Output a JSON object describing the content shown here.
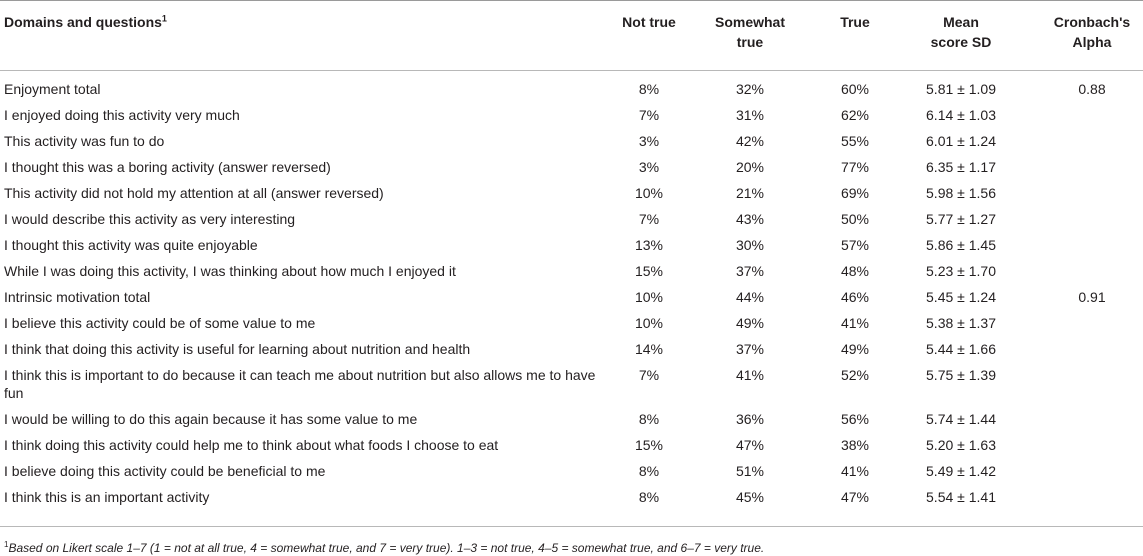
{
  "headers": {
    "question": "Domains and questions",
    "question_sup": "1",
    "not_true": "Not true",
    "somewhat_true_1": "Somewhat",
    "somewhat_true_2": "true",
    "true": "True",
    "mean_1": "Mean",
    "mean_2": "score SD",
    "alpha_1": "Cronbach's",
    "alpha_2": "Alpha"
  },
  "rows": [
    {
      "q": "Enjoyment total",
      "nt": "8%",
      "st": "32%",
      "t": "60%",
      "m": "5.81 ± 1.09",
      "a": "0.88"
    },
    {
      "q": "I enjoyed doing this activity very much",
      "nt": "7%",
      "st": "31%",
      "t": "62%",
      "m": "6.14 ± 1.03",
      "a": ""
    },
    {
      "q": "This activity was fun to do",
      "nt": "3%",
      "st": "42%",
      "t": "55%",
      "m": "6.01 ± 1.24",
      "a": ""
    },
    {
      "q": "I thought this was a boring activity (answer reversed)",
      "nt": "3%",
      "st": "20%",
      "t": "77%",
      "m": "6.35 ± 1.17",
      "a": ""
    },
    {
      "q": "This activity did not hold my attention at all (answer reversed)",
      "nt": "10%",
      "st": "21%",
      "t": "69%",
      "m": "5.98 ± 1.56",
      "a": ""
    },
    {
      "q": "I would describe this activity as very interesting",
      "nt": "7%",
      "st": "43%",
      "t": "50%",
      "m": "5.77 ± 1.27",
      "a": ""
    },
    {
      "q": "I thought this activity was quite enjoyable",
      "nt": "13%",
      "st": "30%",
      "t": "57%",
      "m": "5.86 ± 1.45",
      "a": ""
    },
    {
      "q": "While I was doing this activity, I was thinking about how much I enjoyed it",
      "nt": "15%",
      "st": "37%",
      "t": "48%",
      "m": "5.23 ± 1.70",
      "a": ""
    },
    {
      "q": "Intrinsic motivation total",
      "nt": "10%",
      "st": "44%",
      "t": "46%",
      "m": "5.45 ± 1.24",
      "a": "0.91"
    },
    {
      "q": "I believe this activity could be of some value to me",
      "nt": "10%",
      "st": "49%",
      "t": "41%",
      "m": "5.38 ± 1.37",
      "a": ""
    },
    {
      "q": "I think that doing this activity is useful for learning about nutrition and health",
      "nt": "14%",
      "st": "37%",
      "t": "49%",
      "m": "5.44 ± 1.66",
      "a": ""
    },
    {
      "q": "I think this is important to do because it can teach me about nutrition but also allows me to have fun",
      "nt": "7%",
      "st": "41%",
      "t": "52%",
      "m": "5.75 ± 1.39",
      "a": ""
    },
    {
      "q": "I would be willing to do this again because it has some value to me",
      "nt": "8%",
      "st": "36%",
      "t": "56%",
      "m": "5.74 ± 1.44",
      "a": ""
    },
    {
      "q": "I think doing this activity could help me to think about what foods I choose to eat",
      "nt": "15%",
      "st": "47%",
      "t": "38%",
      "m": "5.20 ± 1.63",
      "a": ""
    },
    {
      "q": "I believe doing this activity could be beneficial to me",
      "nt": "8%",
      "st": "51%",
      "t": "41%",
      "m": "5.49 ± 1.42",
      "a": ""
    },
    {
      "q": "I think this is an important activity",
      "nt": "8%",
      "st": "45%",
      "t": "47%",
      "m": "5.54 ± 1.41",
      "a": ""
    }
  ],
  "footnote": {
    "sup": "1",
    "text": "Based on Likert scale 1–7 (1 = not at all true, 4 = somewhat true, and 7 = very true). 1–3 = not true, 4–5 = somewhat true, and 6–7 = very true."
  }
}
